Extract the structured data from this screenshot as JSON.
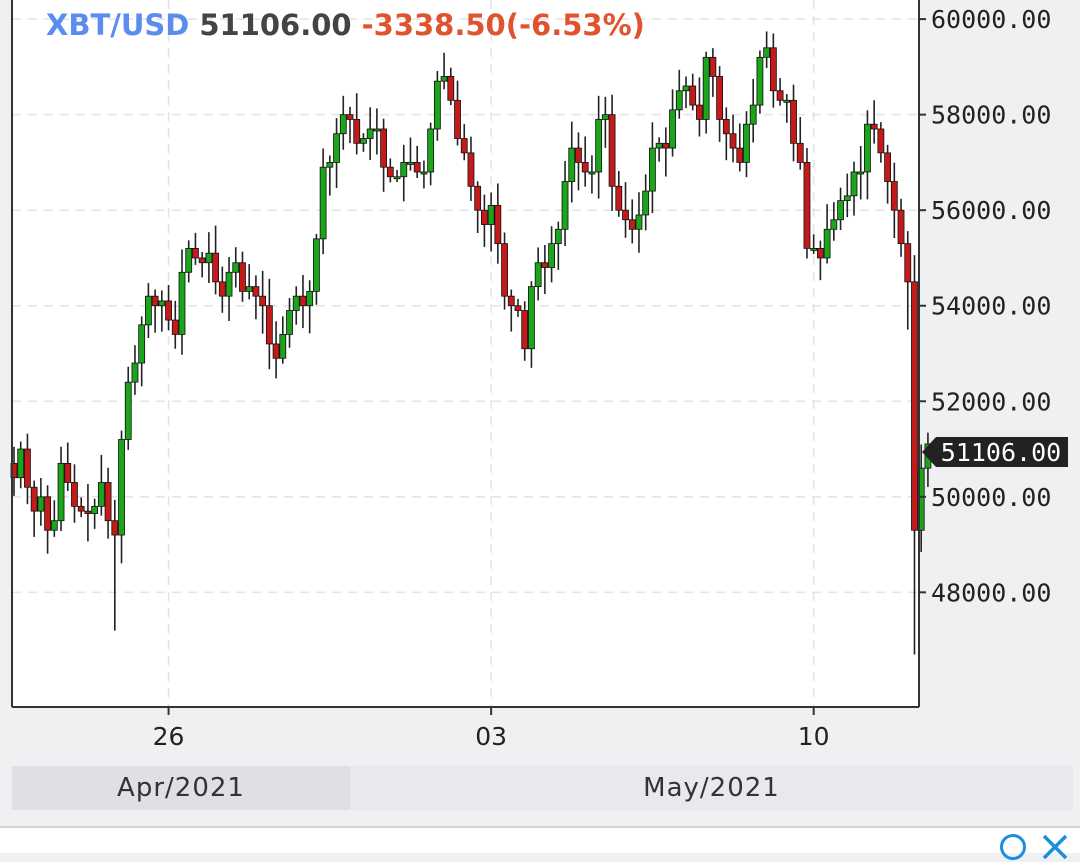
{
  "header": {
    "symbol": "XBT/USD",
    "price": "51106.00",
    "change": "-3338.50(-6.53%)"
  },
  "last_price_label": "51106.00",
  "colors": {
    "up": "#1aa51a",
    "down": "#c41a1a",
    "symbol": "#5b8dee",
    "change": "#e0532f",
    "grid": "#e3e3e3",
    "price_tag": "#222222",
    "info_icon": "#1a8fe0"
  },
  "icons": [
    "info-icon",
    "close-icon"
  ],
  "month_labels": [
    "Apr/2021",
    "May/2021"
  ],
  "chart_data": {
    "type": "candlestick",
    "instrument": "XBT/USD",
    "interval_hours": 4,
    "ylim": [
      45600,
      60400
    ],
    "ylabel_ticks": [
      "48000.00",
      "50000.00",
      "52000.00",
      "54000.00",
      "56000.00",
      "58000.00",
      "60000.00"
    ],
    "x_ticks": [
      {
        "label": "26",
        "index": 23
      },
      {
        "label": "03",
        "index": 71
      },
      {
        "label": "10",
        "index": 119
      }
    ],
    "grid": true,
    "close_series": [
      50400,
      51000,
      50200,
      49700,
      50000,
      49300,
      49500,
      50700,
      50300,
      49800,
      49700,
      49650,
      49800,
      50300,
      49500,
      49200,
      51200,
      52400,
      52800,
      53600,
      54200,
      54000,
      54100,
      53700,
      53400,
      54700,
      55200,
      55000,
      54900,
      55100,
      54500,
      54200,
      54700,
      54900,
      54300,
      54400,
      54200,
      54000,
      53200,
      52900,
      53400,
      53900,
      54200,
      54000,
      54300,
      55400,
      56900,
      57000,
      57600,
      58000,
      57900,
      57400,
      57500,
      57700,
      57700,
      56900,
      56700,
      56700,
      57000,
      57000,
      56800,
      56800,
      57700,
      58700,
      58800,
      58300,
      57500,
      57200,
      56500,
      56000,
      55700,
      56100,
      55300,
      54200,
      54000,
      53900,
      53100,
      54400,
      54900,
      54800,
      55300,
      55600,
      56600,
      57300,
      57000,
      56800,
      56800,
      57900,
      58000,
      56500,
      56000,
      55800,
      55600,
      55900,
      56400,
      57300,
      57400,
      57300,
      58100,
      58500,
      58600,
      58200,
      57900,
      59200,
      58800,
      57900,
      57600,
      57300,
      57000,
      57800,
      58200,
      59200,
      59400,
      58500,
      58300,
      58300,
      57400,
      57000,
      55200,
      55200,
      55000,
      55600,
      55800,
      56200,
      56300,
      56800,
      56800,
      57800,
      57700,
      57200,
      56600,
      56000,
      55300,
      54500,
      49300,
      50600,
      51106
    ]
  }
}
